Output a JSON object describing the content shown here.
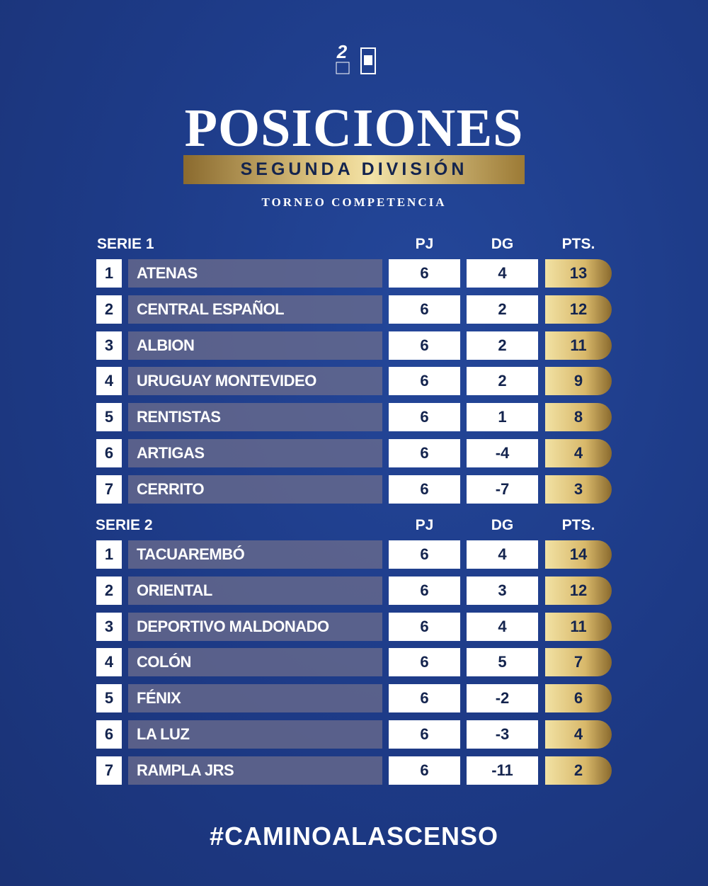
{
  "header": {
    "title": "POSICIONES",
    "subtitle": "SEGUNDA DIVISIÓN",
    "tournament": "TORNEO COMPETENCIA"
  },
  "series": [
    {
      "name": "SERIE 1",
      "columns": [
        "PJ",
        "DG",
        "PTS."
      ],
      "rows": [
        [
          1,
          "ATENAS",
          6,
          4,
          13
        ],
        [
          2,
          "CENTRAL ESPAÑOL",
          6,
          2,
          12
        ],
        [
          3,
          "ALBION",
          6,
          2,
          11
        ],
        [
          4,
          "URUGUAY MONTEVIDEO",
          6,
          2,
          9
        ],
        [
          5,
          "RENTISTAS",
          6,
          1,
          8
        ],
        [
          6,
          "ARTIGAS",
          6,
          -4,
          4
        ],
        [
          7,
          "CERRITO",
          6,
          -7,
          3
        ]
      ]
    },
    {
      "name": "SERIE 2",
      "columns": [
        "PJ",
        "DG",
        "PTS."
      ],
      "rows": [
        [
          1,
          "TACUAREMBÓ",
          6,
          4,
          14
        ],
        [
          2,
          "ORIENTAL",
          6,
          3,
          12
        ],
        [
          3,
          "DEPORTIVO MALDONADO",
          6,
          4,
          11
        ],
        [
          4,
          "COLÓN",
          6,
          5,
          7
        ],
        [
          5,
          "FÉNIX",
          6,
          -2,
          6
        ],
        [
          6,
          "LA LUZ",
          6,
          -3,
          4
        ],
        [
          7,
          "RAMPLA JRS",
          6,
          -11,
          2
        ]
      ]
    }
  ],
  "footer": {
    "hashtag": "#CAMINOALASCENSO"
  }
}
